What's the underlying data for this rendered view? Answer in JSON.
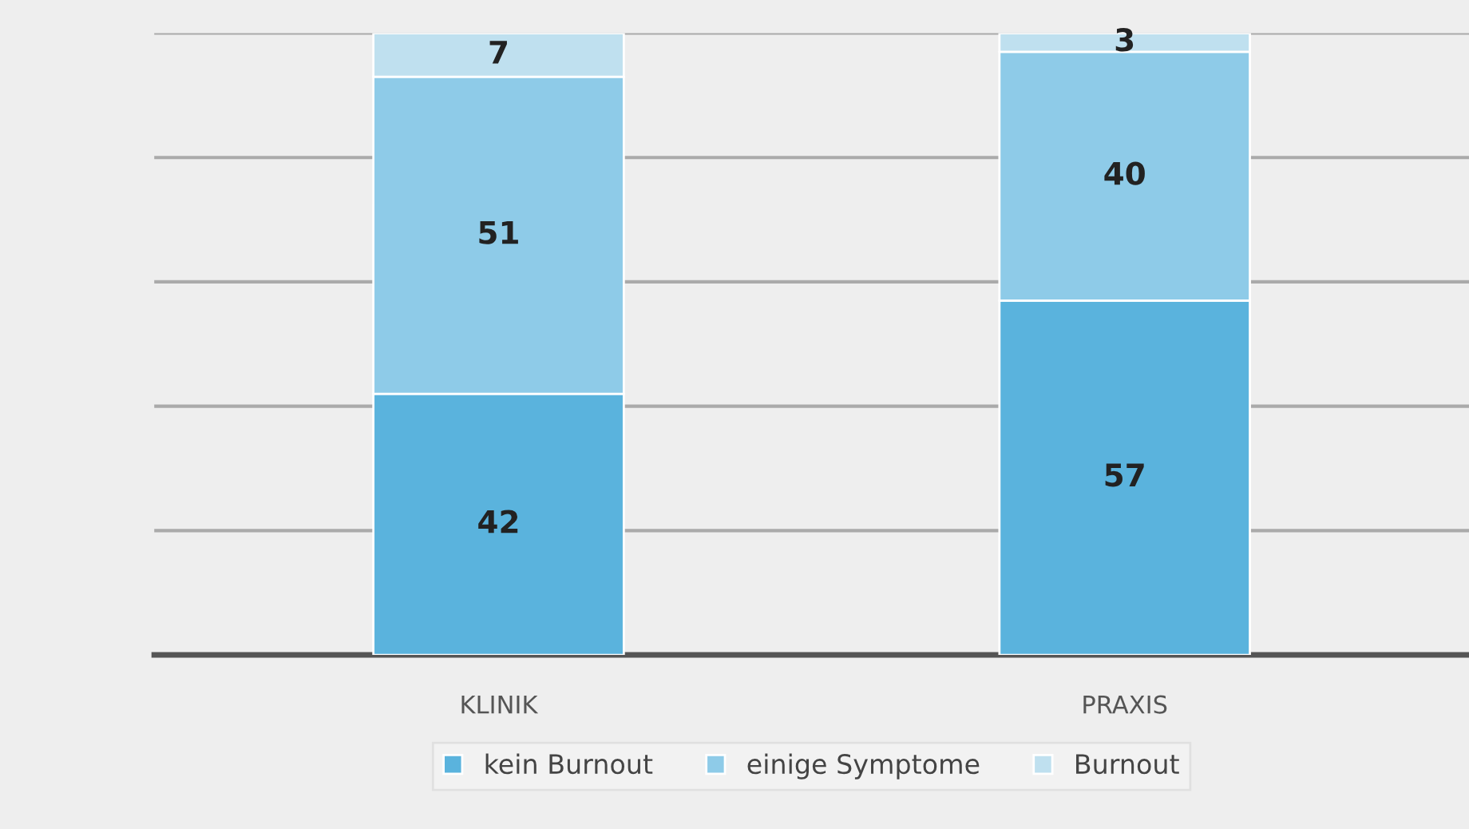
{
  "chart_data": {
    "type": "bar",
    "stacked": true,
    "categories": [
      "KLINIK",
      "PRAXIS"
    ],
    "series": [
      {
        "name": "kein Burnout",
        "color": "#5ab3dd",
        "values": [
          42,
          57
        ]
      },
      {
        "name": "einige Symptome",
        "color": "#8ecbe8",
        "values": [
          51,
          40
        ]
      },
      {
        "name": "Burnout",
        "color": "#bfe0ef",
        "values": [
          7,
          3
        ]
      }
    ],
    "ylim": [
      0,
      100
    ],
    "yticks": [
      {
        "value": 0,
        "label": null
      },
      {
        "value": 20,
        "label": null
      },
      {
        "value": 40,
        "label": null
      },
      {
        "value": 60,
        "label": null
      },
      {
        "value": 80,
        "label": null
      },
      {
        "value": 100,
        "label": null
      }
    ],
    "grid": "y",
    "tick_labels": "x",
    "data_labels": true,
    "legend": "bottom"
  }
}
